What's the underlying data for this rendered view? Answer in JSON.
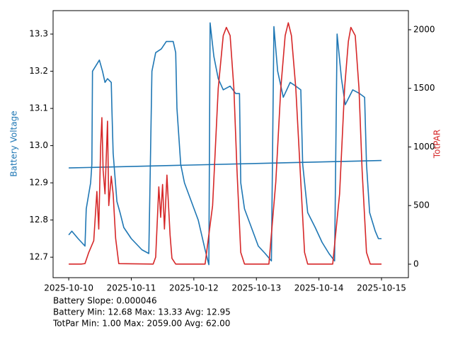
{
  "chart_data": {
    "type": "line",
    "ylabel": "Battery Voltage",
    "y2label": "TotPAR",
    "ylabel_color": "#1f77b4",
    "y2label_color": "#d62728",
    "xlim": [
      -0.25,
      5.43
    ],
    "xticks": [
      {
        "value": 0,
        "label": "2025-10-10"
      },
      {
        "value": 1,
        "label": "2025-10-11"
      },
      {
        "value": 2,
        "label": "2025-10-12"
      },
      {
        "value": 3,
        "label": "2025-10-13"
      },
      {
        "value": 4,
        "label": "2025-10-14"
      },
      {
        "value": 5,
        "label": "2025-10-15"
      }
    ],
    "ylim": [
      12.645,
      13.363
    ],
    "yticks": [
      12.7,
      12.8,
      12.9,
      {
        "value": 13,
        "label": "13.0"
      },
      13.1,
      13.2,
      13.3
    ],
    "y2lim": [
      -115,
      2163
    ],
    "y2ticks": [
      0,
      500,
      1000,
      1500,
      2000
    ],
    "grid": false,
    "annotations": [
      "Battery Slope: 0.000046",
      "Battery Min: 12.68 Max: 13.33 Avg: 12.95",
      "TotPar Min: 1.00 Max: 2059.00 Avg: 62.00"
    ],
    "series": [
      {
        "color": "#1f77b4",
        "axis": "y",
        "x": [
          0,
          0.05,
          0.15,
          0.26,
          0.28,
          0.35,
          0.37,
          0.38,
          0.49,
          0.54,
          0.58,
          0.62,
          0.68,
          0.69,
          0.71,
          0.77,
          0.82,
          0.88,
          1.0,
          1.17,
          1.28,
          1.3,
          1.33,
          1.39,
          1.48,
          1.56,
          1.67,
          1.71,
          1.73,
          1.79,
          1.85,
          1.96,
          2.07,
          2.18,
          2.24,
          2.26,
          2.32,
          2.39,
          2.47,
          2.58,
          2.67,
          2.73,
          2.75,
          2.81,
          2.92,
          3.03,
          3.14,
          3.24,
          3.28,
          3.34,
          3.43,
          3.54,
          3.63,
          3.71,
          3.74,
          3.82,
          3.94,
          4.05,
          4.16,
          4.25,
          4.29,
          4.36,
          4.42,
          4.54,
          4.65,
          4.73,
          4.76,
          4.81,
          4.9,
          4.95,
          5.0
        ],
        "values": [
          12.76,
          12.77,
          12.75,
          12.73,
          12.83,
          12.9,
          12.95,
          13.2,
          13.23,
          13.2,
          13.17,
          13.18,
          13.17,
          13.1,
          12.98,
          12.85,
          12.82,
          12.78,
          12.75,
          12.72,
          12.71,
          12.9,
          13.2,
          13.25,
          13.26,
          13.28,
          13.28,
          13.25,
          13.1,
          12.95,
          12.9,
          12.85,
          12.8,
          12.72,
          12.68,
          13.33,
          13.24,
          13.18,
          13.15,
          13.16,
          13.14,
          13.14,
          12.9,
          12.83,
          12.78,
          12.73,
          12.71,
          12.69,
          13.32,
          13.2,
          13.13,
          13.17,
          13.16,
          13.15,
          12.95,
          12.82,
          12.78,
          12.74,
          12.71,
          12.69,
          13.3,
          13.18,
          13.11,
          13.15,
          13.14,
          13.13,
          12.95,
          12.82,
          12.77,
          12.75,
          12.75
        ]
      },
      {
        "color": "#1f77b4",
        "axis": "y",
        "x": [
          0,
          5
        ],
        "values": [
          12.94,
          12.96
        ]
      },
      {
        "color": "#d62728",
        "axis": "y2",
        "x": [
          0,
          0.2,
          0.26,
          0.32,
          0.4,
          0.45,
          0.48,
          0.51,
          0.53,
          0.55,
          0.58,
          0.62,
          0.64,
          0.68,
          0.71,
          0.75,
          0.8,
          1.35,
          1.39,
          1.44,
          1.47,
          1.5,
          1.53,
          1.57,
          1.62,
          1.65,
          1.71,
          2.18,
          2.3,
          2.39,
          2.47,
          2.52,
          2.58,
          2.64,
          2.69,
          2.75,
          2.81,
          3.2,
          3.31,
          3.39,
          3.46,
          3.51,
          3.56,
          3.63,
          3.7,
          3.77,
          3.82,
          4.22,
          4.33,
          4.41,
          4.47,
          4.51,
          4.58,
          4.64,
          4.69,
          4.76,
          4.82,
          5.0
        ],
        "values": [
          1,
          1,
          5,
          100,
          200,
          620,
          300,
          1000,
          1250,
          800,
          600,
          1220,
          500,
          750,
          600,
          220,
          5,
          1,
          60,
          660,
          400,
          680,
          300,
          760,
          250,
          50,
          1,
          1,
          500,
          1500,
          1950,
          2020,
          1950,
          1500,
          800,
          100,
          1,
          1,
          700,
          1500,
          1950,
          2059,
          1950,
          1500,
          800,
          100,
          1,
          1,
          600,
          1500,
          1900,
          2020,
          1950,
          1500,
          800,
          100,
          1,
          1
        ]
      }
    ]
  }
}
